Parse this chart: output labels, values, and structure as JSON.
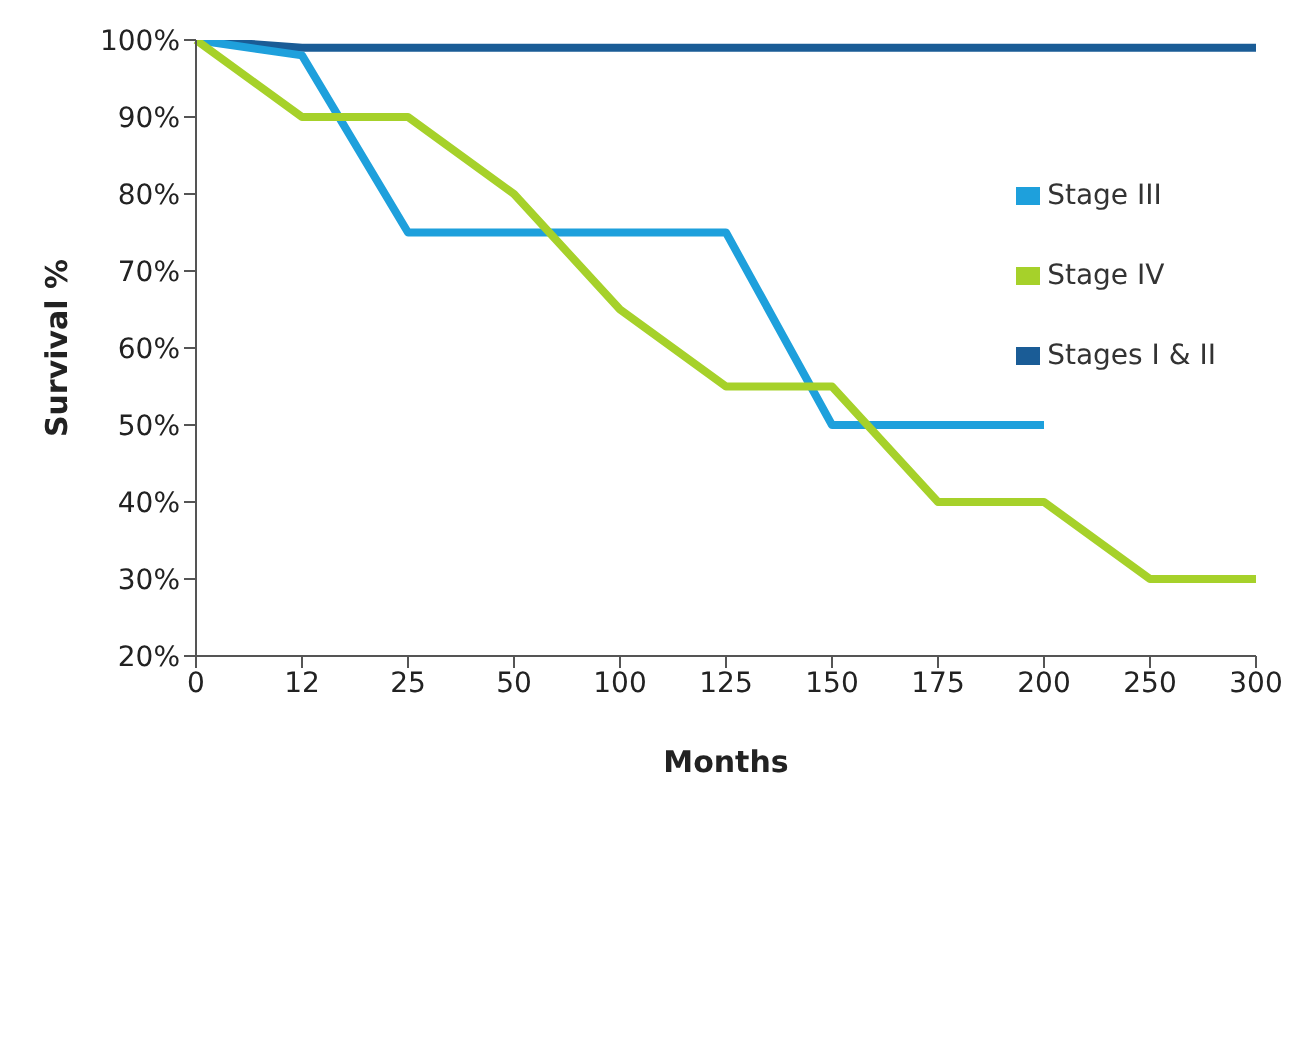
{
  "chart_data": {
    "type": "line",
    "xlabel": "Months",
    "ylabel": "Survival %",
    "categories": [
      "0",
      "12",
      "25",
      "50",
      "100",
      "125",
      "150",
      "175",
      "200",
      "250",
      "300"
    ],
    "series": [
      {
        "name": "Stages I & II",
        "color": "#1a5c96",
        "values": [
          100,
          99,
          99,
          99,
          99,
          99,
          99,
          99,
          99,
          99,
          99
        ]
      },
      {
        "name": "Stage III",
        "color": "#1ea0dc",
        "values": [
          100,
          98,
          75,
          75,
          75,
          75,
          50,
          50,
          50,
          null,
          null
        ]
      },
      {
        "name": "Stage IV",
        "color": "#a6d12a",
        "values": [
          100,
          90,
          90,
          80,
          65,
          55,
          55,
          40,
          40,
          30,
          30
        ]
      }
    ],
    "ylim": [
      20,
      100
    ],
    "yticks": [
      {
        "value": 20,
        "label": "20%"
      },
      {
        "value": 30,
        "label": "30%"
      },
      {
        "value": 40,
        "label": "40%"
      },
      {
        "value": 50,
        "label": "50%"
      },
      {
        "value": 60,
        "label": "60%"
      },
      {
        "value": 70,
        "label": "70%"
      },
      {
        "value": 80,
        "label": "80%"
      },
      {
        "value": 90,
        "label": "90%"
      },
      {
        "value": 100,
        "label": "100%"
      }
    ],
    "grid": false,
    "legend": "top right",
    "marker": "none",
    "line_style": "solid"
  }
}
